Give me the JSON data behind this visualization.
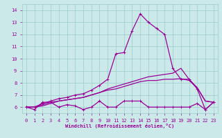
{
  "title": "",
  "xlabel": "Windchill (Refroidissement éolien,°C)",
  "ylabel": "",
  "xlim": [
    -0.5,
    23.5
  ],
  "ylim": [
    5.5,
    14.5
  ],
  "yticks": [
    6,
    7,
    8,
    9,
    10,
    11,
    12,
    13,
    14
  ],
  "xticks": [
    0,
    1,
    2,
    3,
    4,
    5,
    6,
    7,
    8,
    9,
    10,
    11,
    12,
    13,
    14,
    15,
    16,
    17,
    18,
    19,
    20,
    21,
    22,
    23
  ],
  "bg_color": "#cce9e9",
  "grid_color": "#99cccc",
  "line_color": "#990099",
  "line1_x": [
    0,
    1,
    2,
    3,
    4,
    5,
    6,
    7,
    8,
    9,
    10,
    11,
    12,
    13,
    14,
    15,
    16,
    17,
    18,
    19,
    20,
    21,
    22,
    23
  ],
  "line1_y": [
    6.0,
    5.8,
    6.4,
    6.4,
    6.0,
    6.2,
    6.1,
    5.8,
    6.0,
    6.5,
    6.0,
    6.0,
    6.5,
    6.5,
    6.5,
    6.0,
    6.0,
    6.0,
    6.0,
    6.0,
    6.0,
    6.3,
    5.8,
    6.4
  ],
  "line2_x": [
    0,
    1,
    2,
    3,
    4,
    5,
    6,
    7,
    8,
    9,
    10,
    11,
    12,
    13,
    14,
    15,
    16,
    17,
    18,
    19,
    20,
    21,
    22,
    23
  ],
  "line2_y": [
    6.0,
    6.0,
    6.2,
    6.4,
    6.5,
    6.6,
    6.7,
    6.8,
    7.0,
    7.2,
    7.4,
    7.5,
    7.7,
    7.9,
    8.1,
    8.2,
    8.2,
    8.3,
    8.3,
    8.35,
    8.2,
    7.6,
    6.5,
    6.4
  ],
  "line3_x": [
    0,
    1,
    2,
    3,
    4,
    5,
    6,
    7,
    8,
    9,
    10,
    11,
    12,
    13,
    14,
    15,
    16,
    17,
    18,
    19,
    20,
    21,
    22,
    23
  ],
  "line3_y": [
    6.0,
    6.0,
    6.3,
    6.5,
    6.7,
    6.8,
    7.0,
    7.1,
    7.4,
    7.8,
    8.3,
    10.4,
    10.5,
    12.3,
    13.7,
    13.0,
    12.5,
    12.0,
    9.2,
    8.3,
    8.3,
    7.5,
    5.8,
    6.4
  ],
  "line4_x": [
    0,
    1,
    2,
    3,
    4,
    5,
    6,
    7,
    8,
    9,
    10,
    11,
    12,
    13,
    14,
    15,
    16,
    17,
    18,
    19,
    20,
    21,
    22,
    23
  ],
  "line4_y": [
    6.0,
    6.0,
    6.1,
    6.3,
    6.5,
    6.6,
    6.7,
    6.8,
    7.0,
    7.2,
    7.5,
    7.7,
    7.9,
    8.1,
    8.3,
    8.5,
    8.6,
    8.7,
    8.8,
    9.2,
    8.3,
    7.6,
    6.5,
    6.4
  ]
}
